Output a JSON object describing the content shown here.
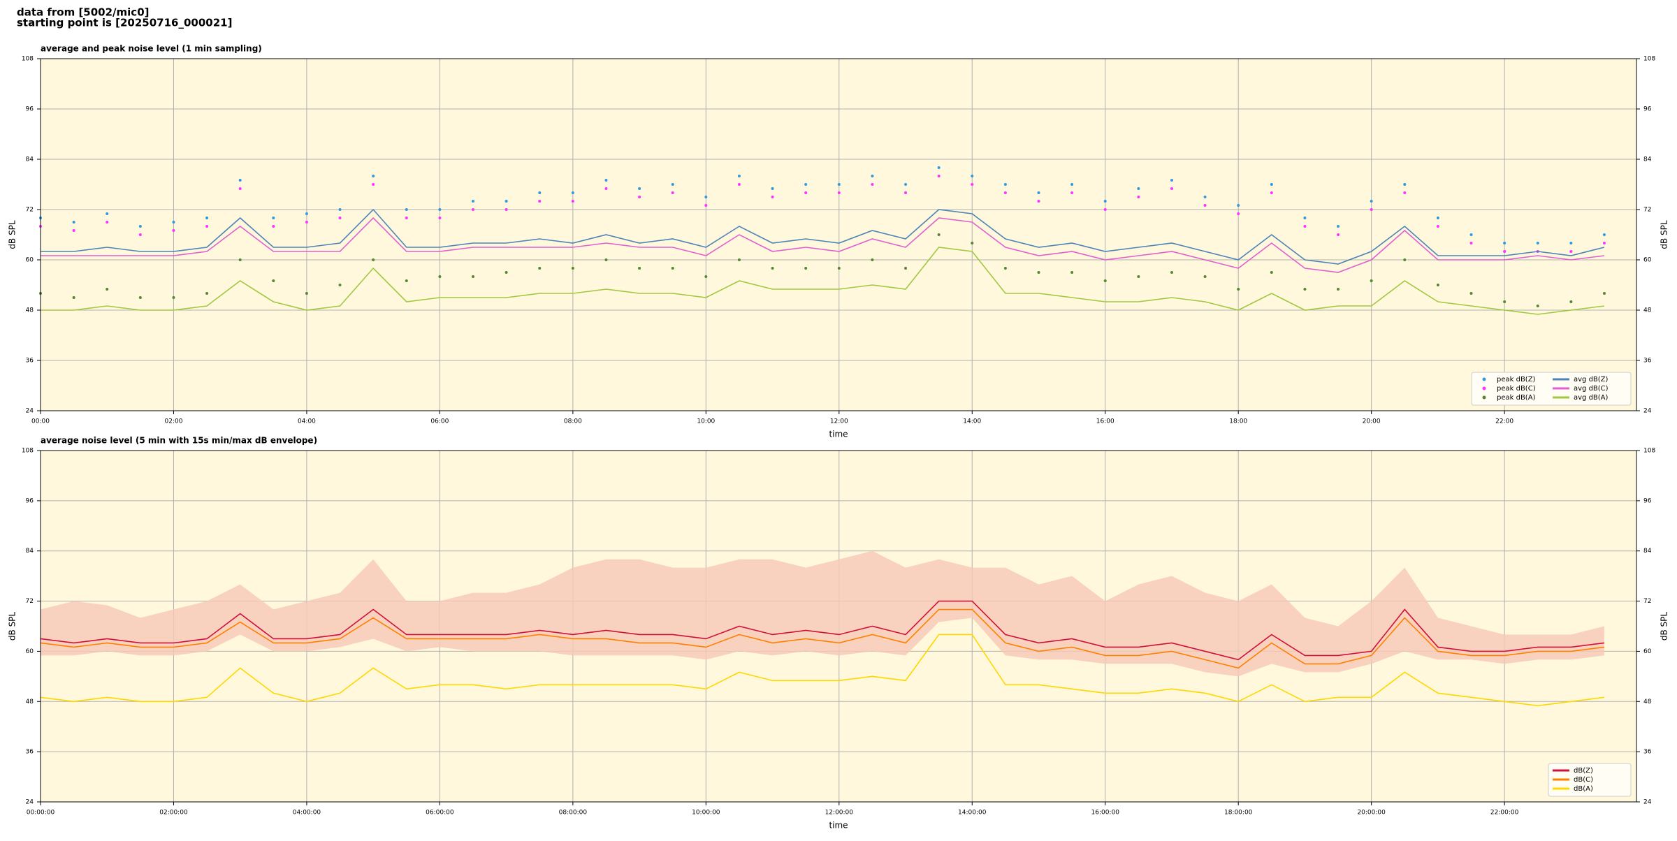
{
  "header": {
    "line1": "data from [5002/mic0]",
    "line2": "starting point is [20250716_000021]"
  },
  "chart_data": [
    {
      "type": "line",
      "title": "average and peak noise level (1 min sampling)",
      "xlabel": "time",
      "ylabel": "dB SPL",
      "x": [
        "00:00",
        "00:30",
        "01:00",
        "01:30",
        "02:00",
        "02:30",
        "03:00",
        "03:30",
        "04:00",
        "04:30",
        "05:00",
        "05:30",
        "06:00",
        "06:30",
        "07:00",
        "07:30",
        "08:00",
        "08:30",
        "09:00",
        "09:30",
        "10:00",
        "10:30",
        "11:00",
        "11:30",
        "12:00",
        "12:30",
        "13:00",
        "13:30",
        "14:00",
        "14:30",
        "15:00",
        "15:30",
        "16:00",
        "16:30",
        "17:00",
        "17:30",
        "18:00",
        "18:30",
        "19:00",
        "19:30",
        "20:00",
        "20:30",
        "21:00",
        "21:30",
        "22:00",
        "22:30",
        "23:00",
        "23:30"
      ],
      "xlim": [
        "00:00",
        "23:59"
      ],
      "xticks": [
        "00:00",
        "02:00",
        "04:00",
        "06:00",
        "08:00",
        "10:00",
        "12:00",
        "14:00",
        "16:00",
        "18:00",
        "20:00",
        "22:00"
      ],
      "ylim": [
        24,
        108
      ],
      "yticks": [
        24,
        36,
        48,
        60,
        72,
        84,
        96,
        108
      ],
      "grid": true,
      "legend": "lower right",
      "legend_columns": 2,
      "series": [
        {
          "name": "peak dB(Z)",
          "color": "#3399dd",
          "marker": "dot",
          "values": [
            70,
            69,
            71,
            68,
            69,
            70,
            79,
            70,
            71,
            72,
            80,
            72,
            72,
            74,
            74,
            76,
            76,
            79,
            77,
            78,
            75,
            80,
            77,
            78,
            78,
            80,
            78,
            82,
            80,
            78,
            76,
            78,
            74,
            77,
            79,
            75,
            73,
            78,
            70,
            68,
            74,
            78,
            70,
            66,
            64,
            64,
            64,
            66
          ]
        },
        {
          "name": "peak dB(C)",
          "color": "#ff33ff",
          "marker": "dot",
          "values": [
            68,
            67,
            69,
            66,
            67,
            68,
            77,
            68,
            69,
            70,
            78,
            70,
            70,
            72,
            72,
            74,
            74,
            77,
            75,
            76,
            73,
            78,
            75,
            76,
            76,
            78,
            76,
            80,
            78,
            76,
            74,
            76,
            72,
            75,
            77,
            73,
            71,
            76,
            68,
            66,
            72,
            76,
            68,
            64,
            62,
            62,
            62,
            64
          ]
        },
        {
          "name": "peak dB(A)",
          "color": "#558833",
          "marker": "dot",
          "values": [
            52,
            51,
            53,
            51,
            51,
            52,
            60,
            55,
            52,
            54,
            60,
            55,
            56,
            56,
            57,
            58,
            58,
            60,
            58,
            58,
            56,
            60,
            58,
            58,
            58,
            60,
            58,
            66,
            64,
            58,
            57,
            57,
            55,
            56,
            57,
            56,
            53,
            57,
            53,
            53,
            55,
            60,
            54,
            52,
            50,
            49,
            50,
            52
          ]
        },
        {
          "name": "avg dB(Z)",
          "color": "#4c84b8",
          "marker": "line",
          "values": [
            62,
            62,
            63,
            62,
            62,
            63,
            70,
            63,
            63,
            64,
            72,
            63,
            63,
            64,
            64,
            65,
            64,
            66,
            64,
            65,
            63,
            68,
            64,
            65,
            64,
            67,
            65,
            72,
            71,
            65,
            63,
            64,
            62,
            63,
            64,
            62,
            60,
            66,
            60,
            59,
            62,
            68,
            61,
            61,
            61,
            62,
            61,
            63
          ]
        },
        {
          "name": "avg dB(C)",
          "color": "#e060d0",
          "marker": "line",
          "values": [
            61,
            61,
            61,
            61,
            61,
            62,
            68,
            62,
            62,
            62,
            70,
            62,
            62,
            63,
            63,
            63,
            63,
            64,
            63,
            63,
            61,
            66,
            62,
            63,
            62,
            65,
            63,
            70,
            69,
            63,
            61,
            62,
            60,
            61,
            62,
            60,
            58,
            64,
            58,
            57,
            60,
            67,
            60,
            60,
            60,
            61,
            60,
            61
          ]
        },
        {
          "name": "avg dB(A)",
          "color": "#a0c840",
          "marker": "line",
          "values": [
            48,
            48,
            49,
            48,
            48,
            49,
            55,
            50,
            48,
            49,
            58,
            50,
            51,
            51,
            51,
            52,
            52,
            53,
            52,
            52,
            51,
            55,
            53,
            53,
            53,
            54,
            53,
            63,
            62,
            52,
            52,
            51,
            50,
            50,
            51,
            50,
            48,
            52,
            48,
            49,
            49,
            55,
            50,
            49,
            48,
            47,
            48,
            49
          ]
        }
      ]
    },
    {
      "type": "line",
      "title": "average noise level (5 min with 15s min/max dB envelope)",
      "xlabel": "time",
      "ylabel": "dB SPL",
      "x": [
        "00:00",
        "00:30",
        "01:00",
        "01:30",
        "02:00",
        "02:30",
        "03:00",
        "03:30",
        "04:00",
        "04:30",
        "05:00",
        "05:30",
        "06:00",
        "06:30",
        "07:00",
        "07:30",
        "08:00",
        "08:30",
        "09:00",
        "09:30",
        "10:00",
        "10:30",
        "11:00",
        "11:30",
        "12:00",
        "12:30",
        "13:00",
        "13:30",
        "14:00",
        "14:30",
        "15:00",
        "15:30",
        "16:00",
        "16:30",
        "17:00",
        "17:30",
        "18:00",
        "18:30",
        "19:00",
        "19:30",
        "20:00",
        "20:30",
        "21:00",
        "21:30",
        "22:00",
        "22:30",
        "23:00",
        "23:30"
      ],
      "xlim": [
        "00:00",
        "23:59"
      ],
      "xticks": [
        "00:00:00",
        "02:00:00",
        "04:00:00",
        "06:00:00",
        "08:00:00",
        "10:00:00",
        "12:00:00",
        "14:00:00",
        "16:00:00",
        "18:00:00",
        "20:00:00",
        "22:00:00"
      ],
      "ylim": [
        24,
        108
      ],
      "yticks": [
        24,
        36,
        48,
        60,
        72,
        84,
        96,
        108
      ],
      "grid": true,
      "legend": "lower right",
      "legend_columns": 1,
      "envelope": {
        "color": "#f8c8b8",
        "min": [
          59,
          59,
          60,
          59,
          59,
          60,
          64,
          60,
          60,
          61,
          63,
          60,
          61,
          60,
          60,
          60,
          59,
          59,
          59,
          59,
          58,
          60,
          59,
          60,
          59,
          60,
          59,
          67,
          68,
          59,
          58,
          58,
          57,
          57,
          57,
          55,
          54,
          57,
          55,
          55,
          57,
          60,
          58,
          58,
          57,
          58,
          58,
          59
        ],
        "max": [
          70,
          72,
          71,
          68,
          70,
          72,
          76,
          70,
          72,
          74,
          82,
          72,
          72,
          74,
          74,
          76,
          80,
          82,
          82,
          80,
          80,
          82,
          82,
          80,
          82,
          84,
          80,
          82,
          80,
          80,
          76,
          78,
          72,
          76,
          78,
          74,
          72,
          76,
          68,
          66,
          72,
          80,
          68,
          66,
          64,
          64,
          64,
          66
        ]
      },
      "series": [
        {
          "name": "dB(Z)",
          "color": "#d0103a",
          "marker": "line",
          "values": [
            63,
            62,
            63,
            62,
            62,
            63,
            69,
            63,
            63,
            64,
            70,
            64,
            64,
            64,
            64,
            65,
            64,
            65,
            64,
            64,
            63,
            66,
            64,
            65,
            64,
            66,
            64,
            72,
            72,
            64,
            62,
            63,
            61,
            61,
            62,
            60,
            58,
            64,
            59,
            59,
            60,
            70,
            61,
            60,
            60,
            61,
            61,
            62
          ]
        },
        {
          "name": "dB(C)",
          "color": "#ff8000",
          "marker": "line",
          "values": [
            62,
            61,
            62,
            61,
            61,
            62,
            67,
            62,
            62,
            63,
            68,
            63,
            63,
            63,
            63,
            64,
            63,
            63,
            62,
            62,
            61,
            64,
            62,
            63,
            62,
            64,
            62,
            70,
            70,
            62,
            60,
            61,
            59,
            59,
            60,
            58,
            56,
            62,
            57,
            57,
            59,
            68,
            60,
            59,
            59,
            60,
            60,
            61
          ]
        },
        {
          "name": "dB(A)",
          "color": "#ffd700",
          "marker": "line",
          "values": [
            49,
            48,
            49,
            48,
            48,
            49,
            56,
            50,
            48,
            50,
            56,
            51,
            52,
            52,
            51,
            52,
            52,
            52,
            52,
            52,
            51,
            55,
            53,
            53,
            53,
            54,
            53,
            64,
            64,
            52,
            52,
            51,
            50,
            50,
            51,
            50,
            48,
            52,
            48,
            49,
            49,
            55,
            50,
            49,
            48,
            47,
            48,
            49
          ]
        }
      ]
    }
  ]
}
